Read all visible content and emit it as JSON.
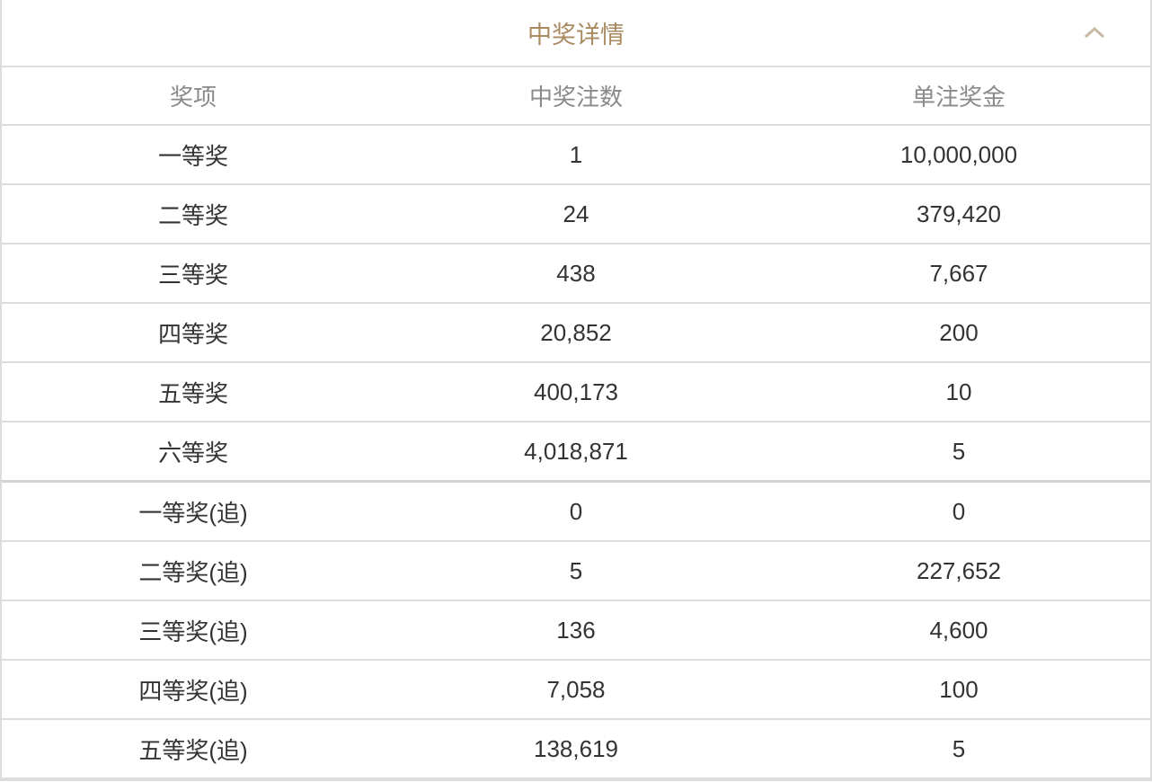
{
  "panel": {
    "title": "中奖详情",
    "collapse_icon": "chevron-up-icon",
    "title_color": "#a98a5f"
  },
  "table": {
    "headers": [
      "奖项",
      "中奖注数",
      "单注奖金"
    ],
    "rows": [
      [
        "一等奖",
        "1",
        "10,000,000"
      ],
      [
        "二等奖",
        "24",
        "379,420"
      ],
      [
        "三等奖",
        "438",
        "7,667"
      ],
      [
        "四等奖",
        "20,852",
        "200"
      ],
      [
        "五等奖",
        "400,173",
        "10"
      ],
      [
        "六等奖",
        "4,018,871",
        "5"
      ],
      [
        "一等奖(追)",
        "0",
        "0"
      ],
      [
        "二等奖(追)",
        "5",
        "227,652"
      ],
      [
        "三等奖(追)",
        "136",
        "4,600"
      ],
      [
        "四等奖(追)",
        "7,058",
        "100"
      ],
      [
        "五等奖(追)",
        "138,619",
        "5"
      ]
    ]
  }
}
